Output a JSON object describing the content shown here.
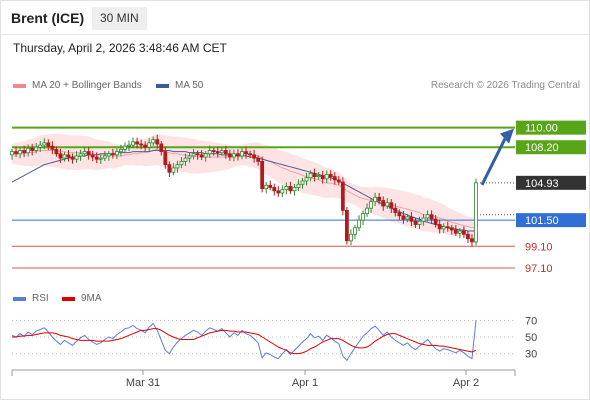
{
  "header": {
    "instrument": "Brent (ICE)",
    "timeframe": "30 MIN",
    "datetime": "Thursday, April 2, 2026 3:48:46 AM CET"
  },
  "legend": {
    "bollinger": {
      "label": "MA 20 + Bollinger Bands",
      "color": "#f08a8a"
    },
    "ma50": {
      "label": "MA 50",
      "color": "#3a5a99"
    },
    "rsi": {
      "label": "RSI",
      "color": "#5a7ed8"
    },
    "rsi_ma": {
      "label": "9MA",
      "color": "#e00000"
    },
    "credit": "Research © 2026 Trading Central"
  },
  "colors": {
    "up": "#2f8a2f",
    "down": "#b01c1c",
    "resistance": "#58a51a",
    "pivot": "#2f6fd6",
    "support": "#e05050",
    "current": "#333333",
    "band": "#fde3e3",
    "arrow": "#2f5fa8"
  },
  "chart_data": [
    {
      "type": "candlestick",
      "x_ticks": [
        "Mar 31",
        "Apr 1",
        "Apr 2"
      ],
      "ylim": [
        96,
        113
      ],
      "grid": false,
      "levels": [
        {
          "label": "110.00",
          "value": 110.0,
          "kind": "resistance"
        },
        {
          "label": "108.20",
          "value": 108.2,
          "kind": "resistance"
        },
        {
          "label": "104.93",
          "value": 104.93,
          "kind": "current"
        },
        {
          "label": "101.50",
          "value": 101.5,
          "kind": "pivot"
        },
        {
          "label": "99.10",
          "value": 99.1,
          "kind": "support"
        },
        {
          "label": "97.10",
          "value": 97.1,
          "kind": "support"
        }
      ],
      "forecast_arrow": {
        "from": 104.93,
        "to": 110.0
      },
      "close": [
        107.8,
        107.6,
        107.9,
        107.7,
        108.1,
        107.9,
        108.2,
        108.4,
        108.6,
        108.3,
        108.0,
        107.6,
        107.2,
        107.5,
        107.3,
        107.1,
        107.4,
        107.6,
        107.8,
        107.5,
        107.3,
        107.1,
        107.2,
        107.4,
        107.6,
        107.5,
        107.8,
        108.0,
        108.3,
        108.4,
        108.7,
        108.5,
        108.4,
        108.2,
        108.6,
        108.9,
        108.5,
        107.8,
        106.6,
        105.9,
        106.3,
        106.6,
        106.9,
        107.2,
        107.4,
        107.6,
        107.5,
        107.3,
        107.6,
        107.9,
        107.8,
        107.7,
        107.9,
        107.6,
        107.3,
        107.6,
        107.4,
        107.8,
        107.6,
        107.5,
        107.2,
        106.9,
        104.4,
        104.7,
        104.5,
        104.2,
        104.0,
        104.3,
        104.6,
        104.2,
        104.5,
        104.8,
        105.1,
        105.4,
        105.8,
        105.5,
        105.6,
        105.3,
        105.7,
        105.5,
        105.2,
        105.0,
        102.4,
        99.6,
        100.2,
        100.8,
        101.5,
        102.1,
        102.6,
        103.2,
        103.6,
        103.3,
        102.8,
        103.1,
        102.6,
        102.2,
        101.9,
        101.6,
        101.8,
        101.4,
        101.1,
        101.4,
        101.7,
        102.0,
        101.6,
        101.1,
        100.7,
        100.9,
        100.8,
        100.6,
        100.3,
        100.5,
        100.2,
        99.8,
        99.5,
        104.93
      ],
      "ma20": [
        107.6,
        107.6,
        107.6,
        107.6,
        107.7,
        107.7,
        107.8,
        107.9,
        107.9,
        107.9,
        107.9,
        107.9,
        107.8,
        107.8,
        107.7,
        107.7,
        107.7,
        107.7,
        107.7,
        107.7,
        107.6,
        107.5,
        107.5,
        107.5,
        107.5,
        107.4,
        107.4,
        107.4,
        107.5,
        107.5,
        107.6,
        107.6,
        107.7,
        107.7,
        107.8,
        107.9,
        108.0,
        107.9,
        107.8,
        107.7,
        107.6,
        107.6,
        107.5,
        107.5,
        107.4,
        107.4,
        107.3,
        107.3,
        107.3,
        107.3,
        107.3,
        107.3,
        107.3,
        107.3,
        107.3,
        107.4,
        107.4,
        107.5,
        107.5,
        107.5,
        107.5,
        107.4,
        107.2,
        107.0,
        106.9,
        106.7,
        106.5,
        106.3,
        106.2,
        106.0,
        105.9,
        105.8,
        105.6,
        105.5,
        105.4,
        105.3,
        105.2,
        105.0,
        104.9,
        104.9,
        104.8,
        104.7,
        104.5,
        104.2,
        104.0,
        103.8,
        103.6,
        103.5,
        103.4,
        103.3,
        103.3,
        103.2,
        103.1,
        103.0,
        102.9,
        102.8,
        102.7,
        102.6,
        102.5,
        102.4,
        102.3,
        102.2,
        102.0,
        102.0,
        101.9,
        101.8,
        101.7,
        101.6,
        101.4,
        101.3,
        101.2,
        101.1,
        101.0,
        100.9,
        100.8,
        100.9
      ],
      "ma50": [
        105.0,
        105.2,
        105.4,
        105.6,
        105.8,
        106.0,
        106.2,
        106.4,
        106.6,
        106.7,
        106.8,
        106.9,
        107.0,
        107.1,
        107.2,
        107.3,
        107.3,
        107.4,
        107.4,
        107.5,
        107.5,
        107.5,
        107.6,
        107.6,
        107.6,
        107.6,
        107.7,
        107.7,
        107.7,
        107.7,
        107.8,
        107.8,
        107.8,
        107.8,
        107.8,
        107.9,
        107.9,
        107.9,
        107.9,
        107.9,
        107.8,
        107.8,
        107.8,
        107.8,
        107.7,
        107.7,
        107.7,
        107.7,
        107.6,
        107.6,
        107.6,
        107.6,
        107.5,
        107.5,
        107.5,
        107.5,
        107.4,
        107.4,
        107.4,
        107.3,
        107.3,
        107.2,
        107.1,
        107.0,
        106.9,
        106.8,
        106.7,
        106.6,
        106.5,
        106.4,
        106.3,
        106.2,
        106.1,
        106.0,
        105.9,
        105.8,
        105.7,
        105.6,
        105.5,
        105.4,
        105.3,
        105.1,
        104.9,
        104.7,
        104.5,
        104.3,
        104.1,
        103.9,
        103.7,
        103.5,
        103.3,
        103.1,
        103.0,
        102.8,
        102.6,
        102.4,
        102.3,
        102.1,
        102.0,
        101.8,
        101.7,
        101.6,
        101.4,
        101.3,
        101.2,
        101.1,
        101.0,
        100.9,
        100.8,
        100.7,
        100.7,
        100.6,
        100.6,
        100.5,
        100.5,
        100.5
      ]
    },
    {
      "type": "line",
      "name": "RSI panel",
      "ylim": [
        20,
        80
      ],
      "y_ticks": [
        70,
        50,
        30
      ],
      "series": [
        {
          "name": "RSI",
          "values": [
            52,
            50,
            54,
            51,
            56,
            53,
            57,
            59,
            61,
            56,
            50,
            45,
            41,
            46,
            43,
            40,
            45,
            49,
            52,
            47,
            44,
            41,
            43,
            47,
            50,
            48,
            53,
            56,
            60,
            61,
            64,
            60,
            58,
            55,
            62,
            66,
            58,
            46,
            34,
            30,
            38,
            44,
            48,
            52,
            55,
            58,
            56,
            52,
            57,
            61,
            59,
            57,
            60,
            55,
            50,
            55,
            52,
            58,
            54,
            52,
            48,
            43,
            25,
            31,
            29,
            26,
            24,
            30,
            35,
            29,
            34,
            39,
            44,
            48,
            54,
            49,
            51,
            46,
            52,
            49,
            45,
            42,
            27,
            22,
            30,
            37,
            44,
            51,
            55,
            60,
            63,
            58,
            52,
            56,
            50,
            46,
            43,
            40,
            43,
            38,
            35,
            39,
            43,
            47,
            41,
            36,
            33,
            36,
            35,
            33,
            31,
            34,
            31,
            27,
            24,
            70
          ]
        },
        {
          "name": "9MA",
          "values": [
            50,
            50,
            51,
            51,
            52,
            52,
            53,
            54,
            55,
            55,
            55,
            54,
            52,
            51,
            50,
            48,
            47,
            46,
            46,
            46,
            46,
            45,
            45,
            45,
            45,
            46,
            47,
            48,
            50,
            52,
            54,
            56,
            58,
            58,
            59,
            60,
            60,
            58,
            55,
            52,
            50,
            48,
            47,
            47,
            47,
            47,
            49,
            51,
            53,
            55,
            56,
            57,
            58,
            58,
            57,
            57,
            56,
            56,
            56,
            55,
            54,
            53,
            50,
            47,
            44,
            41,
            38,
            36,
            34,
            31,
            30,
            30,
            31,
            33,
            36,
            38,
            41,
            44,
            46,
            48,
            48,
            48,
            46,
            43,
            40,
            38,
            37,
            37,
            38,
            41,
            45,
            48,
            51,
            53,
            54,
            54,
            52,
            50,
            48,
            46,
            44,
            42,
            41,
            40,
            40,
            40,
            39,
            39,
            38,
            37,
            36,
            35,
            34,
            33,
            32,
            34
          ]
        }
      ]
    }
  ]
}
